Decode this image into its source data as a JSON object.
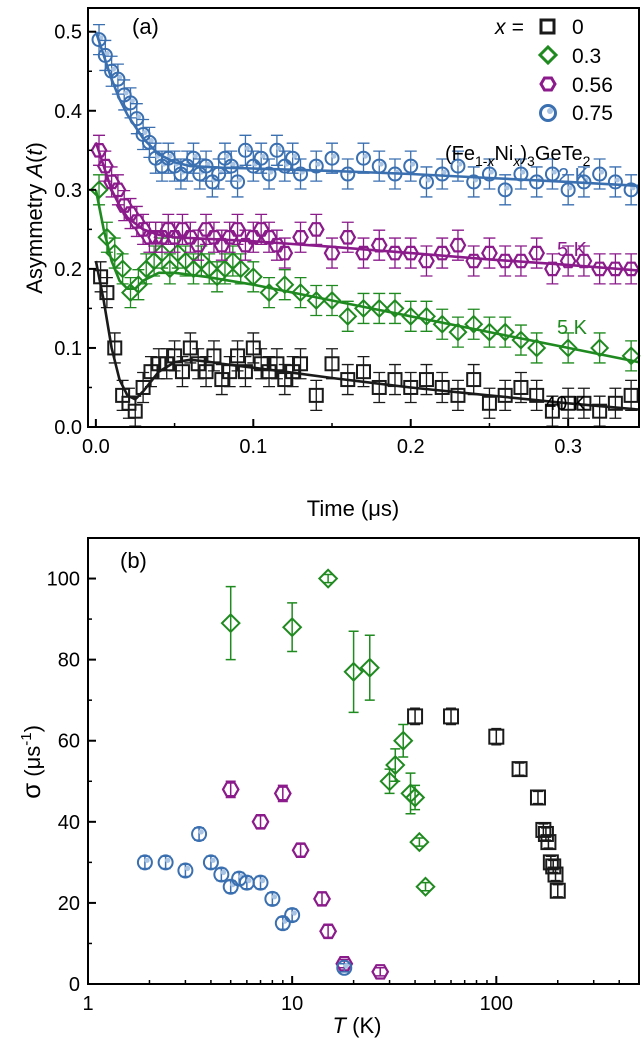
{
  "chart_data": [
    {
      "type": "scatter",
      "panel_label": "(a)",
      "xlabel": "Time (μs)",
      "ylabel_main": "Asymmetry ",
      "ylabel_italic": "A",
      "ylabel_open": "(",
      "ylabel_var": "t",
      "ylabel_close": ")",
      "xlim": [
        -0.005,
        0.345
      ],
      "ylim": [
        0,
        0.53
      ],
      "xticks": [
        0.0,
        0.1,
        0.2,
        0.3
      ],
      "xtick_labels": [
        "0.0",
        "0.1",
        "0.2",
        "0.3"
      ],
      "yticks": [
        0.0,
        0.1,
        0.2,
        0.3,
        0.4,
        0.5
      ],
      "ytick_labels": [
        "0.0",
        "0.1",
        "0.2",
        "0.3",
        "0.4",
        "0.5"
      ],
      "grid": false,
      "legend_position": "top-right",
      "legend_title": "x =",
      "compound": {
        "p1": "(Fe",
        "s1": "1-",
        "s1x": "x",
        "p2": "Ni",
        "s2x": "x",
        "p3": ")",
        "s3": "3",
        "p4": "GeTe",
        "s4": "2"
      },
      "series": [
        {
          "name": "0",
          "marker": "square",
          "color": "#1a1a1a",
          "temperature": "40 K",
          "x": [
            0.003,
            0.007,
            0.012,
            0.017,
            0.021,
            0.025,
            0.03,
            0.035,
            0.04,
            0.045,
            0.05,
            0.055,
            0.06,
            0.065,
            0.07,
            0.075,
            0.08,
            0.085,
            0.09,
            0.095,
            0.1,
            0.105,
            0.11,
            0.115,
            0.12,
            0.125,
            0.13,
            0.14,
            0.15,
            0.16,
            0.17,
            0.18,
            0.19,
            0.2,
            0.21,
            0.22,
            0.23,
            0.24,
            0.25,
            0.26,
            0.27,
            0.28,
            0.29,
            0.3,
            0.31,
            0.32,
            0.33,
            0.34
          ],
          "y": [
            0.19,
            0.17,
            0.1,
            0.04,
            0.03,
            0.02,
            0.05,
            0.07,
            0.08,
            0.08,
            0.09,
            0.07,
            0.1,
            0.08,
            0.07,
            0.09,
            0.06,
            0.07,
            0.09,
            0.07,
            0.1,
            0.08,
            0.07,
            0.08,
            0.06,
            0.07,
            0.08,
            0.04,
            0.08,
            0.06,
            0.07,
            0.05,
            0.06,
            0.05,
            0.06,
            0.05,
            0.04,
            0.06,
            0.03,
            0.04,
            0.05,
            0.04,
            0.02,
            0.03,
            0.03,
            0.02,
            0.03,
            0.04
          ],
          "fit_x": [
            0.0,
            0.005,
            0.01,
            0.015,
            0.02,
            0.025,
            0.03,
            0.04,
            0.05,
            0.06,
            0.07,
            0.08,
            0.1,
            0.12,
            0.15,
            0.2,
            0.25,
            0.3,
            0.345
          ],
          "fit_y": [
            0.21,
            0.16,
            0.1,
            0.06,
            0.04,
            0.035,
            0.045,
            0.07,
            0.082,
            0.085,
            0.083,
            0.08,
            0.075,
            0.07,
            0.062,
            0.05,
            0.04,
            0.03,
            0.022
          ]
        },
        {
          "name": "0.3",
          "marker": "diamond",
          "color": "#1f8a1f",
          "temperature": "5 K",
          "x": [
            0.002,
            0.007,
            0.012,
            0.017,
            0.022,
            0.027,
            0.032,
            0.037,
            0.042,
            0.047,
            0.052,
            0.057,
            0.062,
            0.067,
            0.072,
            0.077,
            0.082,
            0.087,
            0.092,
            0.1,
            0.11,
            0.12,
            0.13,
            0.14,
            0.15,
            0.16,
            0.17,
            0.18,
            0.19,
            0.2,
            0.21,
            0.22,
            0.23,
            0.24,
            0.25,
            0.26,
            0.27,
            0.28,
            0.3,
            0.32,
            0.34
          ],
          "y": [
            0.3,
            0.24,
            0.22,
            0.2,
            0.17,
            0.18,
            0.2,
            0.21,
            0.22,
            0.2,
            0.22,
            0.21,
            0.2,
            0.21,
            0.2,
            0.19,
            0.2,
            0.21,
            0.2,
            0.19,
            0.17,
            0.18,
            0.17,
            0.16,
            0.16,
            0.14,
            0.15,
            0.15,
            0.15,
            0.14,
            0.14,
            0.13,
            0.12,
            0.13,
            0.12,
            0.12,
            0.11,
            0.1,
            0.1,
            0.1,
            0.09
          ],
          "fit_x": [
            0.0,
            0.005,
            0.01,
            0.015,
            0.02,
            0.025,
            0.03,
            0.04,
            0.05,
            0.07,
            0.1,
            0.15,
            0.2,
            0.25,
            0.3,
            0.345
          ],
          "fit_y": [
            0.3,
            0.25,
            0.21,
            0.185,
            0.175,
            0.175,
            0.185,
            0.195,
            0.195,
            0.19,
            0.18,
            0.16,
            0.14,
            0.12,
            0.1,
            0.082
          ]
        },
        {
          "name": "0.56",
          "marker": "hexagon",
          "color": "#8b1a8b",
          "temperature": "5 K",
          "x": [
            0.002,
            0.006,
            0.01,
            0.014,
            0.018,
            0.022,
            0.026,
            0.03,
            0.034,
            0.038,
            0.042,
            0.046,
            0.05,
            0.055,
            0.06,
            0.065,
            0.07,
            0.075,
            0.08,
            0.085,
            0.09,
            0.095,
            0.1,
            0.105,
            0.11,
            0.115,
            0.12,
            0.13,
            0.14,
            0.15,
            0.16,
            0.17,
            0.18,
            0.19,
            0.2,
            0.21,
            0.22,
            0.23,
            0.24,
            0.25,
            0.26,
            0.27,
            0.28,
            0.29,
            0.3,
            0.31,
            0.32,
            0.33,
            0.34
          ],
          "y": [
            0.35,
            0.33,
            0.31,
            0.3,
            0.28,
            0.27,
            0.26,
            0.25,
            0.24,
            0.24,
            0.24,
            0.25,
            0.24,
            0.25,
            0.24,
            0.23,
            0.25,
            0.24,
            0.23,
            0.24,
            0.25,
            0.23,
            0.24,
            0.25,
            0.24,
            0.23,
            0.22,
            0.24,
            0.25,
            0.22,
            0.24,
            0.22,
            0.23,
            0.22,
            0.22,
            0.21,
            0.22,
            0.23,
            0.21,
            0.22,
            0.21,
            0.21,
            0.22,
            0.2,
            0.21,
            0.21,
            0.2,
            0.2,
            0.2
          ],
          "fit_x": [
            0.0,
            0.005,
            0.01,
            0.015,
            0.02,
            0.03,
            0.04,
            0.05,
            0.07,
            0.1,
            0.15,
            0.2,
            0.25,
            0.3,
            0.345
          ],
          "fit_y": [
            0.36,
            0.33,
            0.3,
            0.28,
            0.265,
            0.25,
            0.243,
            0.24,
            0.238,
            0.235,
            0.228,
            0.22,
            0.212,
            0.205,
            0.198
          ]
        },
        {
          "name": "0.75",
          "marker": "circle",
          "color": "#3a6fb0",
          "temperature": "2 K",
          "x": [
            0.002,
            0.006,
            0.01,
            0.014,
            0.018,
            0.022,
            0.026,
            0.03,
            0.034,
            0.038,
            0.042,
            0.046,
            0.05,
            0.054,
            0.058,
            0.062,
            0.066,
            0.07,
            0.074,
            0.078,
            0.082,
            0.086,
            0.09,
            0.095,
            0.1,
            0.105,
            0.11,
            0.115,
            0.12,
            0.125,
            0.13,
            0.14,
            0.15,
            0.16,
            0.17,
            0.18,
            0.19,
            0.2,
            0.21,
            0.22,
            0.23,
            0.24,
            0.25,
            0.26,
            0.27,
            0.28,
            0.29,
            0.3,
            0.31,
            0.32,
            0.33,
            0.34
          ],
          "y": [
            0.49,
            0.47,
            0.45,
            0.44,
            0.42,
            0.41,
            0.39,
            0.37,
            0.36,
            0.34,
            0.33,
            0.34,
            0.33,
            0.32,
            0.33,
            0.34,
            0.32,
            0.33,
            0.31,
            0.32,
            0.34,
            0.33,
            0.31,
            0.35,
            0.33,
            0.34,
            0.32,
            0.35,
            0.33,
            0.34,
            0.32,
            0.33,
            0.34,
            0.32,
            0.34,
            0.33,
            0.32,
            0.33,
            0.31,
            0.32,
            0.33,
            0.31,
            0.32,
            0.3,
            0.32,
            0.31,
            0.32,
            0.3,
            0.31,
            0.32,
            0.31,
            0.3
          ],
          "fit_x": [
            0.0,
            0.005,
            0.01,
            0.015,
            0.02,
            0.03,
            0.04,
            0.05,
            0.06,
            0.08,
            0.1,
            0.15,
            0.2,
            0.25,
            0.3,
            0.345
          ],
          "fit_y": [
            0.5,
            0.47,
            0.44,
            0.415,
            0.395,
            0.365,
            0.345,
            0.335,
            0.33,
            0.328,
            0.327,
            0.324,
            0.32,
            0.315,
            0.31,
            0.305
          ]
        }
      ]
    },
    {
      "type": "scatter",
      "panel_label": "(b)",
      "xlabel_var": "T",
      "xlabel_unit": " (K)",
      "ylabel_sym": "σ",
      "ylabel_open": " (μs",
      "ylabel_sup": "-1",
      "ylabel_close": ")",
      "xscale": "log",
      "xlim": [
        1,
        500
      ],
      "ylim": [
        0,
        110
      ],
      "xticks": [
        1,
        10,
        100
      ],
      "xtick_labels": [
        "1",
        "10",
        "100"
      ],
      "yticks": [
        0,
        20,
        40,
        60,
        80,
        100
      ],
      "ytick_labels": [
        "0",
        "20",
        "40",
        "60",
        "80",
        "100"
      ],
      "grid": false,
      "series": [
        {
          "name": "0",
          "marker": "square",
          "color": "#1a1a1a",
          "x": [
            40,
            60,
            100,
            130,
            160,
            170,
            175,
            180,
            185,
            190,
            195,
            200
          ],
          "y": [
            66,
            66,
            61,
            53,
            46,
            38,
            37,
            35,
            30,
            29,
            27,
            23
          ],
          "err": [
            2,
            2,
            2,
            1.5,
            1.5,
            1.5,
            1.5,
            1.5,
            1.5,
            1.5,
            1.5,
            1.5
          ]
        },
        {
          "name": "0.3",
          "marker": "diamond",
          "color": "#1f8a1f",
          "x": [
            5,
            10,
            15,
            20,
            24,
            30,
            32,
            35,
            38,
            40,
            42,
            45
          ],
          "y": [
            89,
            88,
            100,
            77,
            78,
            50,
            54,
            60,
            47,
            46,
            35,
            24
          ],
          "err": [
            9,
            6,
            1,
            10,
            8,
            3,
            4,
            4,
            5,
            3,
            1,
            1
          ]
        },
        {
          "name": "0.56",
          "marker": "hexagon",
          "color": "#8b1a8b",
          "x": [
            5,
            7,
            9,
            11,
            14,
            15,
            18,
            27
          ],
          "y": [
            48,
            40,
            47,
            33,
            21,
            13,
            5,
            3
          ],
          "err": [
            2,
            1.5,
            2,
            1.5,
            1.5,
            1.5,
            1,
            1
          ]
        },
        {
          "name": "0.75",
          "marker": "circle",
          "color": "#3a6fb0",
          "x": [
            1.9,
            2.4,
            3,
            3.5,
            4,
            4.5,
            5,
            5.5,
            6,
            7,
            8,
            9,
            10,
            18
          ],
          "y": [
            30,
            30,
            28,
            37,
            30,
            27,
            24,
            26,
            25,
            25,
            21,
            15,
            17,
            4
          ],
          "err": [
            1.5,
            1.5,
            1.5,
            1.5,
            1.5,
            1.5,
            1.5,
            1.5,
            1.5,
            1.5,
            1.5,
            1.5,
            1.5,
            1
          ]
        }
      ]
    }
  ]
}
